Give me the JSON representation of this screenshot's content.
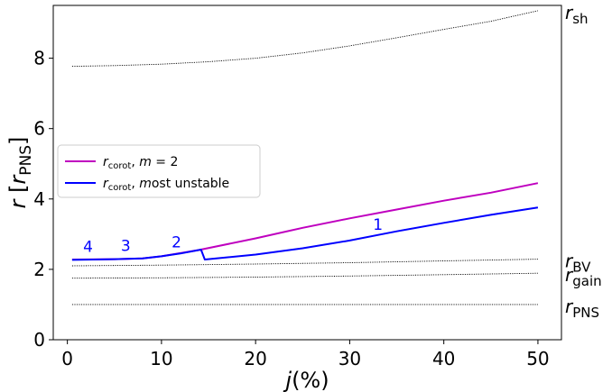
{
  "chart_data": {
    "type": "line",
    "xlabel": "j(%)",
    "ylabel": "r [r_PNS]",
    "xlim": [
      -1.5,
      52.5
    ],
    "ylim": [
      0,
      9.5
    ],
    "xticks": [
      0,
      10,
      20,
      30,
      40,
      50
    ],
    "yticks": [
      0,
      2,
      4,
      6,
      8
    ],
    "grid": false,
    "legend_position": "center-left",
    "legend": [
      {
        "base": "r",
        "sub": "corot",
        "rest": ", m = 2",
        "color": "#bf00bf"
      },
      {
        "base": "r",
        "sub": "corot",
        "rest": ", most unstable",
        "color": "#0000ff"
      }
    ],
    "series": [
      {
        "name": "r_corot, m = 2",
        "color": "#bf00bf",
        "x": [
          0.5,
          5,
          8,
          10,
          14,
          20,
          25,
          30,
          35,
          40,
          45,
          50
        ],
        "y": [
          2.28,
          2.29,
          2.31,
          2.37,
          2.55,
          2.88,
          3.18,
          3.45,
          3.7,
          3.95,
          4.18,
          4.45
        ]
      },
      {
        "name": "r_corot, most unstable",
        "color": "#0000ff",
        "x": [
          0.5,
          5,
          8,
          10,
          12,
          14.2,
          14.6,
          20,
          25,
          30,
          35,
          40,
          45,
          50
        ],
        "y": [
          2.27,
          2.29,
          2.31,
          2.37,
          2.45,
          2.56,
          2.28,
          2.42,
          2.6,
          2.82,
          3.08,
          3.32,
          3.55,
          3.76
        ]
      },
      {
        "name": "r_sh",
        "color": "#000000",
        "dotted": true,
        "x": [
          0.5,
          5,
          10,
          15,
          20,
          25,
          30,
          35,
          40,
          45,
          50
        ],
        "y": [
          7.77,
          7.79,
          7.83,
          7.9,
          8.0,
          8.15,
          8.35,
          8.58,
          8.82,
          9.05,
          9.35
        ]
      },
      {
        "name": "r_BV",
        "color": "#000000",
        "dotted": true,
        "x": [
          0.5,
          10,
          20,
          30,
          40,
          50
        ],
        "y": [
          2.1,
          2.12,
          2.15,
          2.19,
          2.24,
          2.29
        ]
      },
      {
        "name": "r_gain",
        "color": "#000000",
        "dotted": true,
        "x": [
          0.5,
          10,
          20,
          30,
          40,
          50
        ],
        "y": [
          1.75,
          1.76,
          1.78,
          1.81,
          1.85,
          1.89
        ]
      },
      {
        "name": "r_PNS",
        "color": "#000000",
        "dotted": true,
        "x": [
          0.5,
          50
        ],
        "y": [
          1.0,
          1.0
        ]
      }
    ],
    "right_labels": [
      {
        "base": "r",
        "sub": "sh",
        "y": 9.35
      },
      {
        "base": "r",
        "sub": "BV",
        "y": 2.29
      },
      {
        "base": "r",
        "sub": "gain",
        "y": 1.89
      },
      {
        "base": "r",
        "sub": "PNS",
        "y": 1.0
      }
    ],
    "annotations": [
      {
        "text": "4",
        "x": 2.2,
        "y": 2.5,
        "color": "#0000ff"
      },
      {
        "text": "3",
        "x": 6.2,
        "y": 2.52,
        "color": "#0000ff"
      },
      {
        "text": "2",
        "x": 11.6,
        "y": 2.62,
        "color": "#0000ff"
      },
      {
        "text": "1",
        "x": 33.0,
        "y": 3.12,
        "color": "#0000ff"
      }
    ]
  }
}
